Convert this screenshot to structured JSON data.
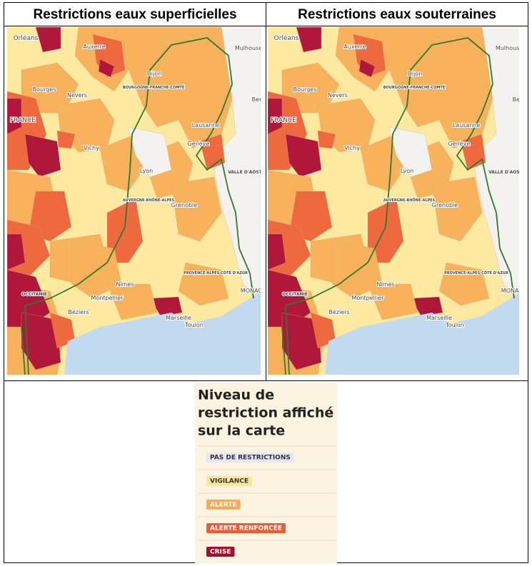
{
  "maps": [
    {
      "title": "Restrictions eaux superficielles"
    },
    {
      "title": "Restrictions eaux souterraines"
    }
  ],
  "map_labels": [
    "Orléans",
    "Auxerre",
    "Mulhouse",
    "Dijon",
    "BOURGOGNE-FRANCHE-COMTÉ",
    "Nevers",
    "Bourges",
    "Bern",
    "Lausanne",
    "FRANCE",
    "Vichy",
    "Genève",
    "Lyon",
    "VALLE D'AOSTA",
    "AUVERGNE-RHÔNE-ALPES",
    "Grenoble",
    "PROVENCE-ALPES-CÔTE D'AZUR",
    "Nîmes",
    "MONACO",
    "Montpellier",
    "OCCITANIE",
    "Béziers",
    "Marseille",
    "Toulon"
  ],
  "legend": {
    "title": [
      "Niveau de",
      "restriction affiché",
      "sur la carte"
    ],
    "items": [
      "PAS DE RESTRICTIONS",
      "VIGILANCE",
      "ALERTE",
      "ALERTE RENFORCÉE",
      "CRISE"
    ]
  }
}
